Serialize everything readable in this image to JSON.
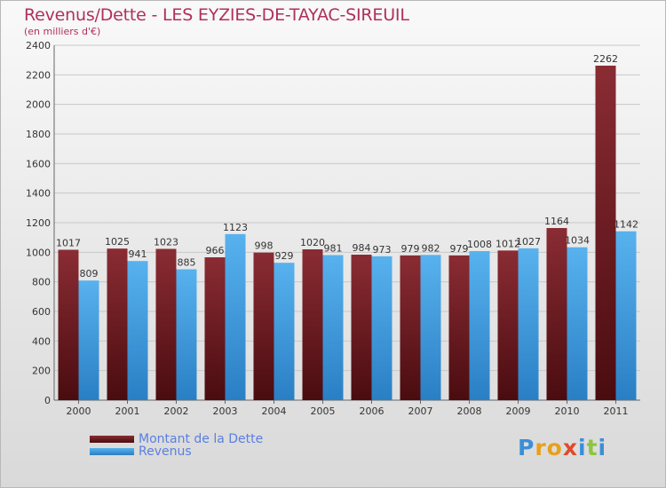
{
  "chart_data": {
    "type": "bar",
    "title": "Revenus/Dette - LES EYZIES-DE-TAYAC-SIREUIL",
    "subtitle": "(en milliers d'€)",
    "categories": [
      "2000",
      "2001",
      "2002",
      "2003",
      "2004",
      "2005",
      "2006",
      "2007",
      "2008",
      "2009",
      "2010",
      "2011"
    ],
    "series": [
      {
        "name": "Montant de la Dette",
        "color": "#7a1f26",
        "values": [
          1017,
          1025,
          1023,
          966,
          998,
          1020,
          984,
          979,
          979,
          1012,
          1164,
          2262
        ]
      },
      {
        "name": "Revenus",
        "color": "#3d9ae0",
        "values": [
          809,
          941,
          885,
          1123,
          929,
          981,
          973,
          982,
          1008,
          1027,
          1034,
          1142
        ]
      }
    ],
    "ylim": [
      0,
      2400
    ],
    "yticks": [
      0,
      200,
      400,
      600,
      800,
      1000,
      1200,
      1400,
      1600,
      1800,
      2000,
      2200,
      2400
    ],
    "grid": true,
    "legend_position": "bottom-left"
  },
  "logo": {
    "letters": [
      {
        "ch": "P",
        "color": "#3a8fd8"
      },
      {
        "ch": "r",
        "color": "#e8a01c"
      },
      {
        "ch": "o",
        "color": "#e8a01c"
      },
      {
        "ch": "x",
        "color": "#e04a2a"
      },
      {
        "ch": "i",
        "color": "#3a8fd8"
      },
      {
        "ch": "t",
        "color": "#8cc63f"
      },
      {
        "ch": "i",
        "color": "#3a8fd8"
      }
    ]
  }
}
